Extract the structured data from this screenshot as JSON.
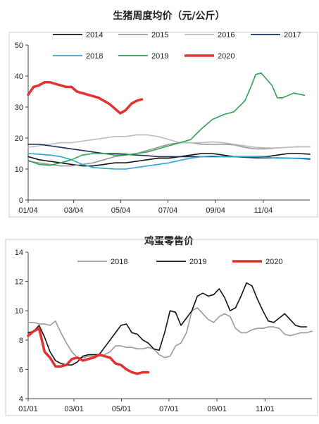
{
  "chart_data": [
    {
      "type": "line",
      "title": "生猪周度均价（元/公斤）",
      "xlabel": "",
      "ylabel": "",
      "ylim": [
        0,
        50
      ],
      "yticks": [
        "0",
        "10",
        "20",
        "30",
        "40",
        "50"
      ],
      "xlim": [
        1,
        53
      ],
      "xticks": [
        {
          "label": "01/04",
          "week": 1
        },
        {
          "label": "03/04",
          "week": 9.4
        },
        {
          "label": "05/04",
          "week": 18.1
        },
        {
          "label": "07/04",
          "week": 26.8
        },
        {
          "label": "09/04",
          "week": 35.6
        },
        {
          "label": "11/04",
          "week": 44.4
        }
      ],
      "grid": false,
      "legend": "top",
      "series": [
        {
          "name": "2014",
          "color": "#111111",
          "x": [
            1,
            3,
            5,
            7,
            9,
            11,
            13,
            15,
            17,
            19,
            21,
            23,
            25,
            27,
            29,
            31,
            33,
            35,
            37,
            39,
            41,
            43,
            45,
            47,
            49,
            51,
            53
          ],
          "y": [
            14,
            13,
            12.5,
            12,
            11.5,
            11,
            11,
            11.5,
            12,
            12,
            12.5,
            13,
            13.5,
            13.5,
            14,
            14.5,
            15,
            15,
            14.5,
            14,
            14,
            14,
            14,
            14.5,
            15,
            15,
            14.8
          ]
        },
        {
          "name": "2015",
          "color": "#9a9a9a",
          "x": [
            1,
            3,
            5,
            7,
            9,
            11,
            13,
            15,
            17,
            19,
            21,
            23,
            25,
            27,
            29,
            31,
            33,
            35,
            37,
            39,
            41,
            43,
            45,
            47,
            49,
            51,
            53
          ],
          "y": [
            12.5,
            12,
            11.5,
            11,
            11,
            11.5,
            12,
            13,
            14,
            14.5,
            15,
            16,
            17,
            18,
            18.5,
            18.5,
            18,
            18,
            18,
            17.8,
            17,
            16.5,
            16.5,
            16.8,
            17,
            17.2,
            17.2
          ]
        },
        {
          "name": "2016",
          "color": "#bdbdbd",
          "x": [
            1,
            3,
            5,
            7,
            9,
            11,
            13,
            15,
            17,
            19,
            21,
            23,
            25,
            27,
            29,
            31,
            33,
            35,
            37,
            39,
            41,
            43,
            45,
            47,
            49,
            51,
            53
          ],
          "y": [
            17,
            17.5,
            18,
            18.5,
            18.5,
            19,
            19.5,
            20,
            20.5,
            20.5,
            21,
            21,
            20.5,
            19.5,
            18.5,
            18.5,
            18.5,
            18.8,
            18.5,
            18,
            17.5,
            17,
            16.8,
            16.8,
            17,
            17.2,
            17.2
          ]
        },
        {
          "name": "2017",
          "color": "#1f2d5a",
          "x": [
            1,
            3,
            5,
            7,
            9,
            11,
            13,
            15,
            17,
            19,
            21,
            23,
            25,
            27,
            29,
            31,
            33,
            35,
            37,
            39,
            41,
            43,
            45,
            47,
            49,
            51,
            53
          ],
          "y": [
            18,
            18,
            17.5,
            17,
            16.5,
            16,
            15.5,
            15,
            15,
            14.8,
            14.5,
            14.3,
            14,
            14,
            14,
            14,
            14,
            14,
            14,
            14,
            13.8,
            13.6,
            13.6,
            13.6,
            13.5,
            13.4,
            13.2
          ]
        },
        {
          "name": "2018",
          "color": "#2aa6d6",
          "x": [
            1,
            3,
            5,
            7,
            9,
            11,
            13,
            15,
            17,
            19,
            21,
            23,
            25,
            27,
            29,
            31,
            33,
            35,
            37,
            39,
            41,
            43,
            45,
            47,
            49,
            51,
            53
          ],
          "y": [
            15,
            14.8,
            14.5,
            14,
            13,
            11.5,
            10.5,
            10.2,
            10,
            10,
            10.5,
            11,
            11.5,
            12,
            12.8,
            13.5,
            14,
            14.2,
            14,
            14,
            14,
            14,
            13.8,
            13.5,
            13.5,
            13.5,
            13.4
          ]
        },
        {
          "name": "2019",
          "color": "#2aa64f",
          "x": [
            1,
            3,
            5,
            7,
            9,
            11,
            13,
            15,
            17,
            19,
            21,
            23,
            25,
            27,
            29,
            31,
            33,
            35,
            37,
            39,
            41,
            42,
            43,
            44,
            46,
            47,
            48,
            50,
            52
          ],
          "y": [
            12.8,
            11.5,
            11.2,
            12,
            13,
            14.5,
            15,
            15,
            14.5,
            14.5,
            15,
            15.5,
            16.5,
            17.5,
            18.5,
            19.5,
            23,
            26,
            27.5,
            28.5,
            32,
            36,
            40.5,
            41,
            37,
            33,
            33,
            34.5,
            33.8
          ]
        },
        {
          "name": "2020",
          "color": "#e53030",
          "x": [
            1,
            2,
            3,
            4,
            5,
            6,
            7,
            8,
            9,
            10,
            11,
            12,
            13,
            14,
            15,
            16,
            17,
            18,
            19,
            20,
            21,
            22
          ],
          "y": [
            34,
            36.5,
            37,
            38,
            38,
            37.5,
            37,
            36.5,
            36.5,
            35,
            34.5,
            34,
            33.5,
            33,
            32,
            31,
            29.5,
            28,
            29,
            31,
            32,
            32.5
          ]
        }
      ]
    },
    {
      "type": "line",
      "title": "鸡蛋零售价",
      "xlabel": "",
      "ylabel": "",
      "ylim": [
        4,
        14
      ],
      "yticks": [
        "4",
        "6",
        "8",
        "10",
        "12",
        "14"
      ],
      "xlim": [
        1,
        53
      ],
      "xticks": [
        {
          "label": "01/01",
          "week": 1
        },
        {
          "label": "03/01",
          "week": 9.4
        },
        {
          "label": "05/01",
          "week": 18.1
        },
        {
          "label": "07/01",
          "week": 26.8
        },
        {
          "label": "09/01",
          "week": 35.6
        },
        {
          "label": "11/01",
          "week": 44.4
        }
      ],
      "grid": false,
      "legend": "top",
      "series": [
        {
          "name": "2018",
          "color": "#9a9a9a",
          "x": [
            1,
            2,
            3,
            4,
            5,
            6,
            7,
            8,
            9,
            10,
            11,
            12,
            13,
            14,
            15,
            16,
            17,
            18,
            19,
            20,
            21,
            22,
            23,
            24,
            25,
            26,
            27,
            28,
            29,
            30,
            31,
            32,
            33,
            34,
            35,
            36,
            37,
            38,
            39,
            40,
            41,
            42,
            43,
            44,
            45,
            46,
            47,
            48,
            49,
            50,
            51,
            52,
            53
          ],
          "y": [
            9.2,
            9.2,
            9.1,
            9.1,
            9,
            9.3,
            8.5,
            7.8,
            7.2,
            6.8,
            6.8,
            6.9,
            6.9,
            6.9,
            7,
            7.2,
            7.6,
            7.6,
            7.5,
            7.5,
            7.4,
            7.4,
            7.5,
            7.4,
            7,
            6.8,
            6.9,
            7.6,
            7.8,
            8.5,
            10,
            10.2,
            9.8,
            9.4,
            9.2,
            9.6,
            9.8,
            9.6,
            8.8,
            8.5,
            8.5,
            8.7,
            8.8,
            8.8,
            8.9,
            8.9,
            8.8,
            8.4,
            8.3,
            8.4,
            8.5,
            8.5,
            8.6
          ]
        },
        {
          "name": "2019",
          "color": "#111111",
          "x": [
            1,
            2,
            3,
            4,
            5,
            6,
            7,
            8,
            9,
            10,
            11,
            12,
            13,
            14,
            15,
            16,
            17,
            18,
            19,
            20,
            21,
            22,
            23,
            24,
            25,
            26,
            27,
            28,
            29,
            30,
            31,
            32,
            33,
            34,
            35,
            36,
            37,
            38,
            39,
            40,
            41,
            42,
            43,
            44,
            45,
            46,
            47,
            48,
            49,
            50,
            51,
            52
          ],
          "y": [
            8.5,
            8.6,
            9,
            8.2,
            7.2,
            6.6,
            6.4,
            6.3,
            6.3,
            6.5,
            6.9,
            7,
            7,
            7,
            7.5,
            8,
            8.5,
            9,
            9.1,
            8.5,
            8.4,
            8,
            7.8,
            7.4,
            7.3,
            8.5,
            10,
            9.9,
            9,
            9.5,
            10,
            11,
            11.2,
            11,
            11.1,
            11.5,
            10.9,
            10,
            10.2,
            11,
            11.9,
            11.7,
            10.8,
            10,
            9.3,
            9.2,
            9.5,
            9.8,
            9.4,
            9,
            8.9,
            8.9
          ]
        },
        {
          "name": "2020",
          "color": "#e53030",
          "x": [
            1,
            2,
            3,
            4,
            5,
            6,
            7,
            8,
            9,
            10,
            11,
            12,
            13,
            14,
            15,
            16,
            17,
            18,
            19,
            20,
            21,
            22,
            23
          ],
          "y": [
            8.3,
            8.6,
            8.8,
            7.2,
            6.8,
            6.2,
            6.2,
            6.3,
            6.7,
            6.8,
            6.6,
            6.7,
            6.8,
            7,
            6.9,
            6.8,
            6.4,
            6.3,
            6,
            5.8,
            5.7,
            5.8,
            5.8
          ]
        }
      ]
    }
  ]
}
